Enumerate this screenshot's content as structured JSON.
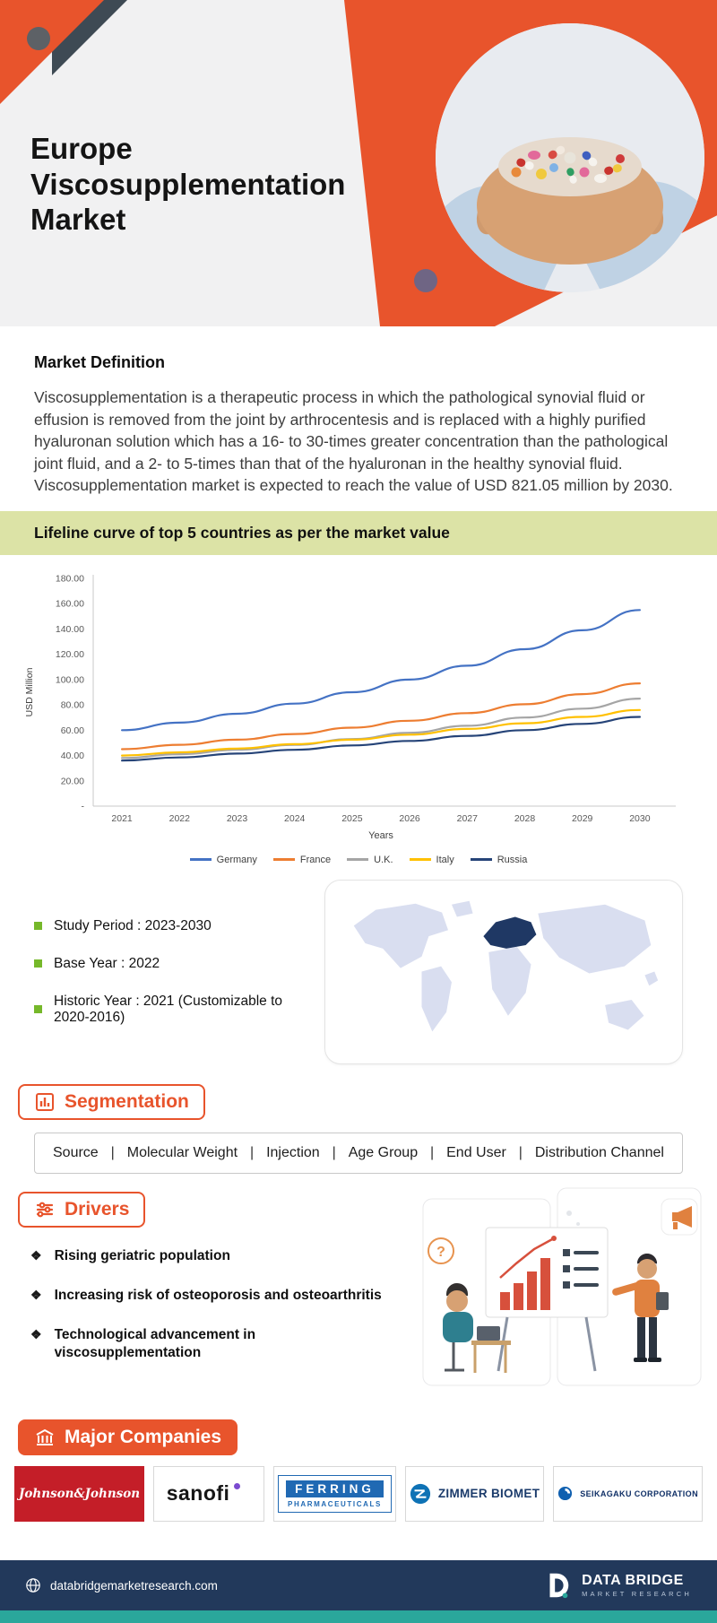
{
  "header": {
    "title": "Europe Viscosupplementation Market"
  },
  "definition": {
    "heading": "Market Definition",
    "body": "Viscosupplementation is a therapeutic process in which the pathological synovial fluid or effusion is removed from the joint by arthrocentesis and is replaced with a highly purified hyaluronan solution which has a 16- to 30-times greater concentration than the pathological joint fluid, and a 2- to 5-times than that of the hyaluronan in the healthy synovial fluid. Viscosupplementation market is expected to reach the value of USD 821.05 million by 2030."
  },
  "banner": {
    "text": "Lifeline curve of top 5 countries as per the market value"
  },
  "chart_data": {
    "type": "line",
    "title": "Lifeline curve of top 5 countries as per the market value",
    "x": [
      "2021",
      "2022",
      "2023",
      "2024",
      "2025",
      "2026",
      "2027",
      "2028",
      "2029",
      "2030"
    ],
    "series": [
      {
        "name": "Germany",
        "color": "#4472C4",
        "values": [
          60,
          66,
          73,
          81,
          90,
          100,
          111,
          124,
          139,
          155
        ]
      },
      {
        "name": "France",
        "color": "#ED7D31",
        "values": [
          45,
          48.5,
          52.5,
          57,
          62,
          67.5,
          73.5,
          80.5,
          88.5,
          97
        ]
      },
      {
        "name": "U.K.",
        "color": "#A5A5A5",
        "values": [
          38,
          41,
          44.5,
          48.5,
          53,
          58,
          63.5,
          70,
          77,
          85
        ]
      },
      {
        "name": "Italy",
        "color": "#FFC000",
        "values": [
          40,
          42.5,
          45.5,
          49,
          52.5,
          56.5,
          61,
          65.5,
          70.5,
          76
        ]
      },
      {
        "name": "Russia",
        "color": "#264478",
        "values": [
          36,
          38.5,
          41.5,
          44.5,
          48,
          51.5,
          55.5,
          60,
          65,
          70.5
        ]
      }
    ],
    "xlabel": "Years",
    "ylabel": "USD Million",
    "ylim": [
      0,
      180
    ],
    "ytick_values": [
      180,
      160,
      140,
      120,
      100,
      80,
      60,
      40,
      20,
      0
    ],
    "ytick_labels": [
      "180.00",
      "160.00",
      "140.00",
      "120.00",
      "100.00",
      "80.00",
      "60.00",
      "40.00",
      "20.00",
      "-"
    ],
    "legend_position": "bottom",
    "grid": false
  },
  "study_info": {
    "items": [
      "Study Period : 2023-2030",
      "Base Year : 2022",
      "Historic Year : 2021 (Customizable to 2020-2016)"
    ]
  },
  "segmentation": {
    "heading": "Segmentation",
    "separator": "|",
    "items": [
      "Source",
      "Molecular Weight",
      "Injection",
      "Age Group",
      "End User",
      "Distribution Channel"
    ]
  },
  "drivers": {
    "heading": "Drivers",
    "bullet": "❖",
    "illustration_question": "?",
    "items": [
      "Rising geriatric population",
      "Increasing risk of osteoporosis and osteoarthritis",
      "Technological advancement in\nviscosupplementation"
    ]
  },
  "companies": {
    "heading": "Major Companies",
    "jnj": "Johnson&Johnson",
    "sanofi": "sanofi",
    "ferring_name": "FERRING",
    "ferring_sub": "PHARMACEUTICALS",
    "zimmer": "ZIMMER BIOMET",
    "seikagaku": "SEIKAGAKU  CORPORATION"
  },
  "footer": {
    "website": "databridgemarketresearch.com",
    "brand": "DATA BRIDGE",
    "brand_sub": "MARKET RESEARCH"
  },
  "colors": {
    "accent": "#E8542C",
    "banner_bg": "#DCE3A6",
    "bullet_green": "#76B82A",
    "footer_bg": "#22395B",
    "strip_teal": "#2AA79B",
    "europe_highlight": "#1F3864"
  }
}
